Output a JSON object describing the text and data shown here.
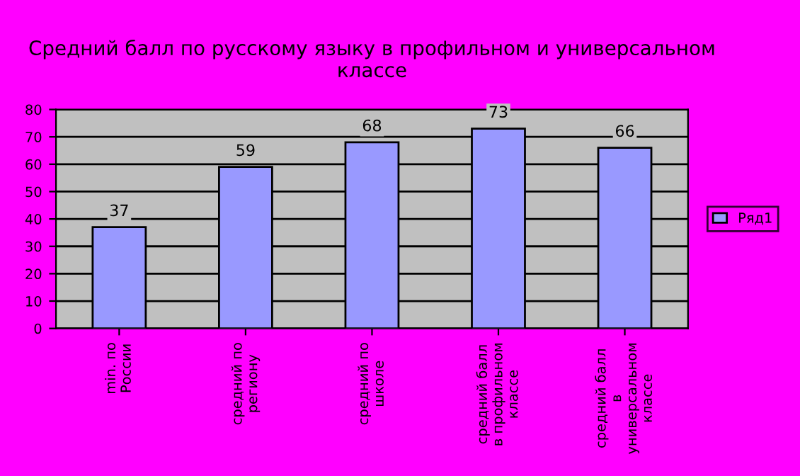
{
  "chart_data": {
    "type": "bar",
    "title": "Средний балл по русскому языку в профильном и универсальном классе",
    "categories": [
      "min. по России",
      "средний по региону",
      "средний по школе",
      "средний балл в профильном классе",
      "средний балл в универсальном классе"
    ],
    "series": [
      {
        "name": "Ряд1",
        "color": "#9999ff",
        "values": [
          37,
          59,
          68,
          73,
          66
        ]
      }
    ],
    "data_labels": true,
    "ylim": [
      0,
      80
    ],
    "yticks": [
      0,
      10,
      20,
      30,
      40,
      50,
      60,
      70,
      80
    ],
    "grid": "y",
    "legend": "right"
  }
}
